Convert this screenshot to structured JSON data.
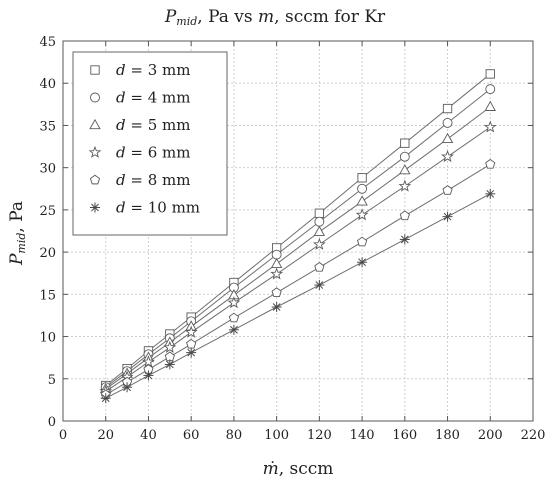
{
  "chart_data": {
    "type": "line",
    "title": {
      "p": "P",
      "sub": "mid",
      "rest": ", Pa vs ",
      "m": "m",
      "tail": ", sccm for Kr"
    },
    "xlabel": {
      "m": "ṁ",
      "rest": ", sccm"
    },
    "ylabel": {
      "p": "P",
      "sub": "mid",
      "rest": ", Pa"
    },
    "xlim": [
      0,
      220
    ],
    "ylim": [
      0,
      45
    ],
    "xticks": [
      0,
      20,
      40,
      60,
      80,
      100,
      120,
      140,
      160,
      180,
      200,
      220
    ],
    "yticks": [
      0,
      5,
      10,
      15,
      20,
      25,
      30,
      35,
      40,
      45
    ],
    "grid": true,
    "legend_position": "top-left",
    "x": [
      20,
      30,
      40,
      50,
      60,
      80,
      100,
      120,
      140,
      160,
      180,
      200
    ],
    "series": [
      {
        "name": "d = 3 mm",
        "name_d": "d",
        "name_val": " = 3 mm",
        "marker": "square",
        "values": [
          4.2,
          6.2,
          8.3,
          10.3,
          12.3,
          16.4,
          20.5,
          24.6,
          28.8,
          32.9,
          37.0,
          41.1
        ]
      },
      {
        "name": "d = 4 mm",
        "name_d": "d",
        "name_val": " = 4 mm",
        "marker": "circle",
        "values": [
          4.0,
          5.9,
          7.9,
          9.8,
          11.8,
          15.8,
          19.7,
          23.6,
          27.5,
          31.3,
          35.3,
          39.3
        ]
      },
      {
        "name": "d = 5 mm",
        "name_d": "d",
        "name_val": " = 5 mm",
        "marker": "triangle",
        "values": [
          3.8,
          5.6,
          7.5,
          9.3,
          11.2,
          14.9,
          18.6,
          22.4,
          26.0,
          29.7,
          33.4,
          37.2
        ]
      },
      {
        "name": "d = 6 mm",
        "name_d": "d",
        "name_val": " = 6 mm",
        "marker": "star",
        "values": [
          3.5,
          5.2,
          7.0,
          8.7,
          10.5,
          14.0,
          17.4,
          20.9,
          24.4,
          27.8,
          31.3,
          34.8
        ]
      },
      {
        "name": "d = 8 mm",
        "name_d": "d",
        "name_val": " = 8 mm",
        "marker": "pentagon",
        "values": [
          3.1,
          4.6,
          6.1,
          7.6,
          9.1,
          12.2,
          15.2,
          18.2,
          21.2,
          24.3,
          27.3,
          30.4
        ]
      },
      {
        "name": "d = 10 mm",
        "name_d": "d",
        "name_val": " = 10 mm",
        "marker": "asterisk",
        "values": [
          2.7,
          4.0,
          5.4,
          6.7,
          8.1,
          10.8,
          13.5,
          16.1,
          18.8,
          21.5,
          24.2,
          26.9
        ]
      }
    ]
  }
}
